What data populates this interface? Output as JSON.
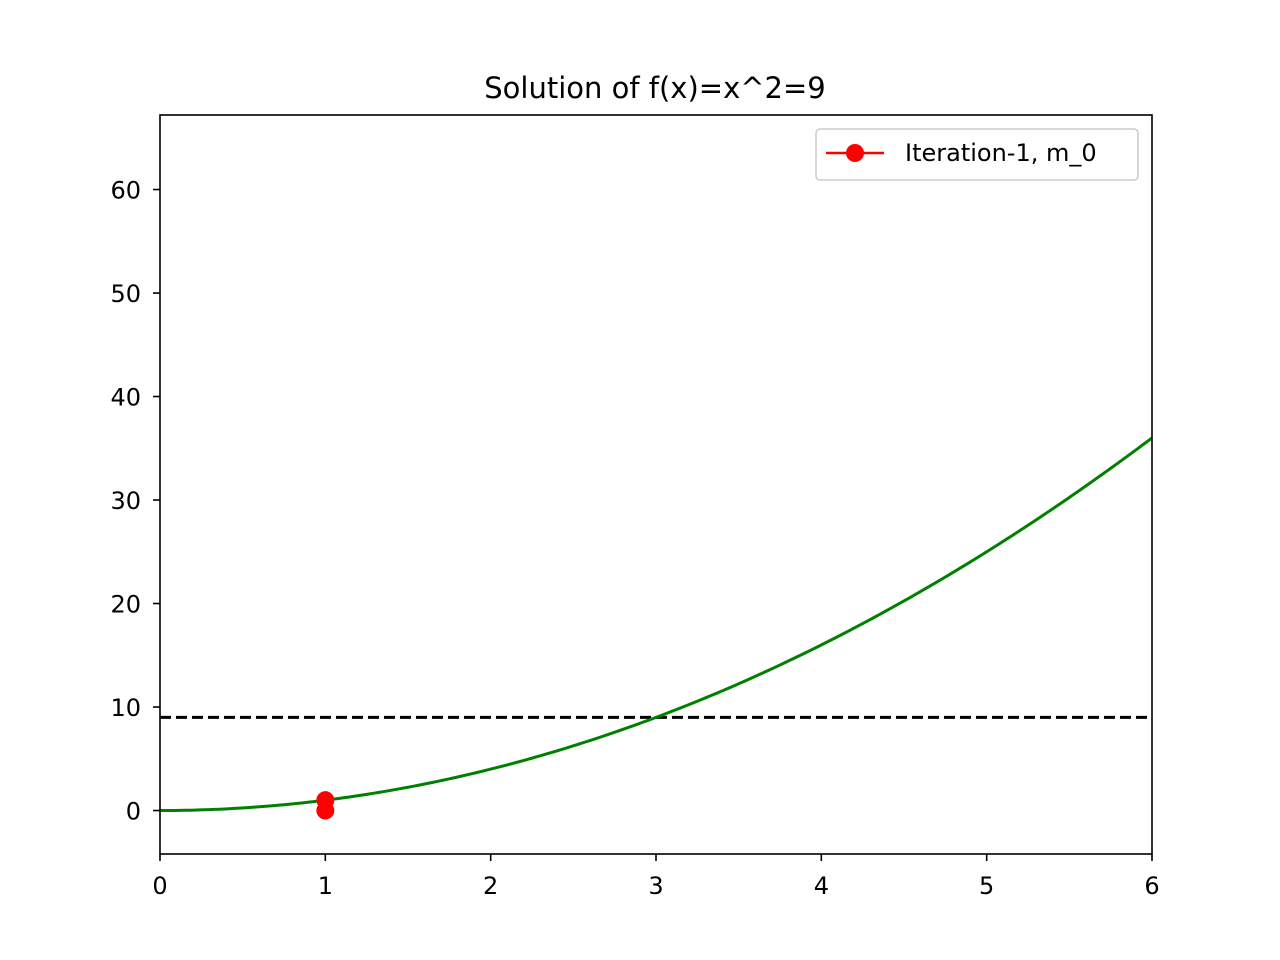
{
  "chart_data": {
    "type": "line",
    "title": "Solution of f(x)=x^2=9",
    "xlabel": "",
    "ylabel": "",
    "xlim": [
      0,
      6
    ],
    "ylim": [
      -4.2,
      67.2
    ],
    "xticks": [
      0,
      1,
      2,
      3,
      4,
      5,
      6
    ],
    "yticks": [
      0,
      10,
      20,
      30,
      40,
      50,
      60
    ],
    "grid": false,
    "legend_position": "top-right",
    "curve": {
      "function": "x^2",
      "x_range": [
        0,
        6
      ],
      "color": "#008000"
    },
    "reference_line": {
      "y": 9,
      "style": "dashed",
      "color": "#000000"
    },
    "series": [
      {
        "name": "Iteration-1, m_0",
        "color": "#ff0000",
        "marker": "circle",
        "points": [
          {
            "x": 1,
            "y": 0
          },
          {
            "x": 1,
            "y": 1
          }
        ]
      }
    ]
  }
}
